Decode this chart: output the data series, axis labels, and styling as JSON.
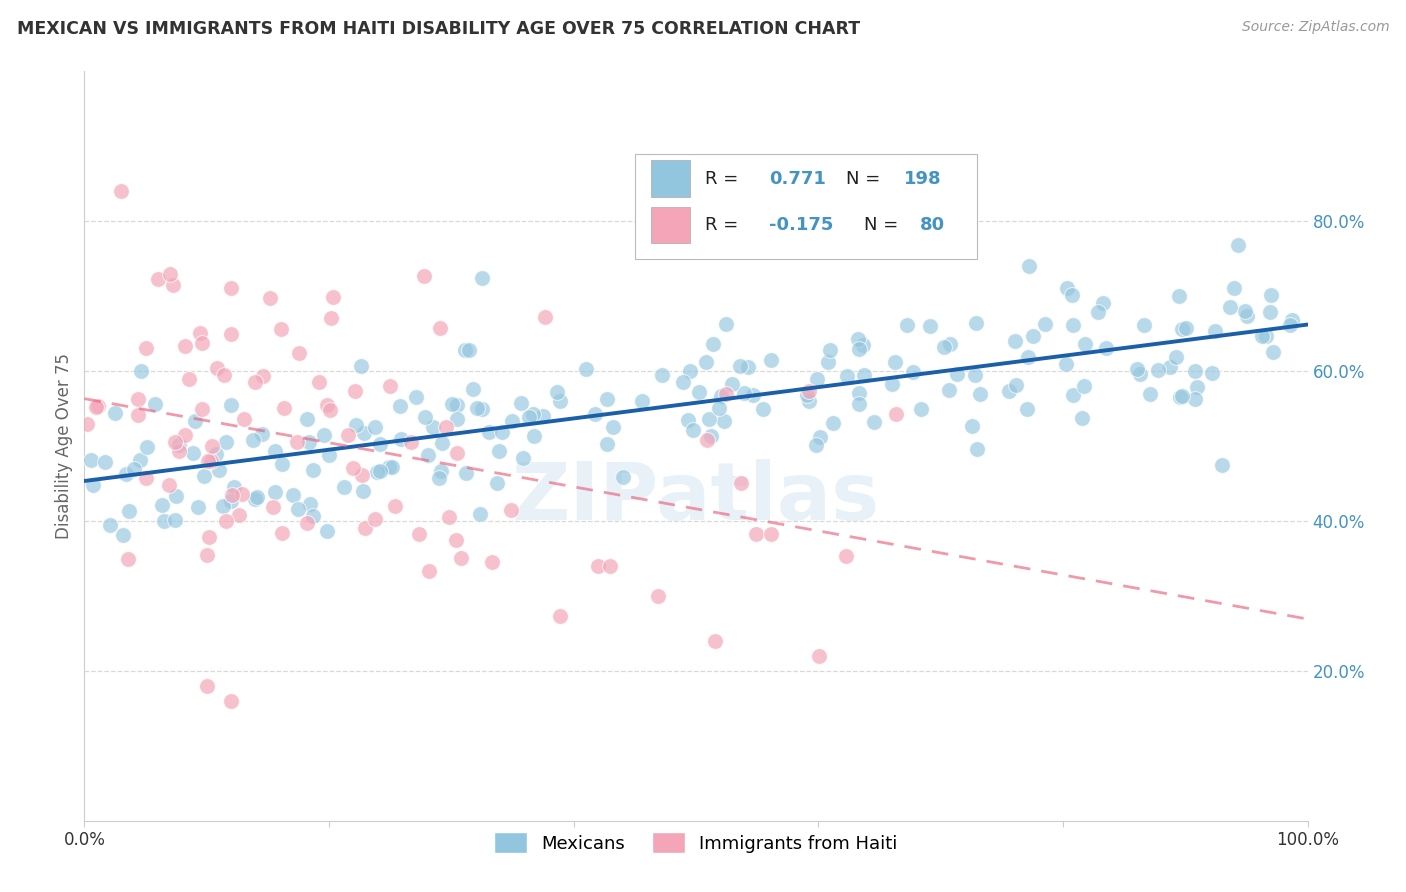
{
  "title": "MEXICAN VS IMMIGRANTS FROM HAITI DISABILITY AGE OVER 75 CORRELATION CHART",
  "source": "Source: ZipAtlas.com",
  "ylabel": "Disability Age Over 75",
  "x_tick_labels": [
    "0.0%",
    "",
    "",
    "",
    "",
    "100.0%"
  ],
  "y_tick_labels_right": [
    "20.0%",
    "40.0%",
    "60.0%",
    "80.0%"
  ],
  "legend_label1": "Mexicans",
  "legend_label2": "Immigrants from Haiti",
  "r1": 0.771,
  "n1": 198,
  "r2": -0.175,
  "n2": 80,
  "color_blue": "#92c5de",
  "color_pink": "#f4a6b8",
  "line_color_blue": "#1a5fa8",
  "line_color_pink": "#e8627a",
  "watermark": "ZIPatlas",
  "title_color": "#333333",
  "axis_label_color": "#666666",
  "tick_color_right": "#4393c3",
  "seed1": 42,
  "seed2": 77
}
